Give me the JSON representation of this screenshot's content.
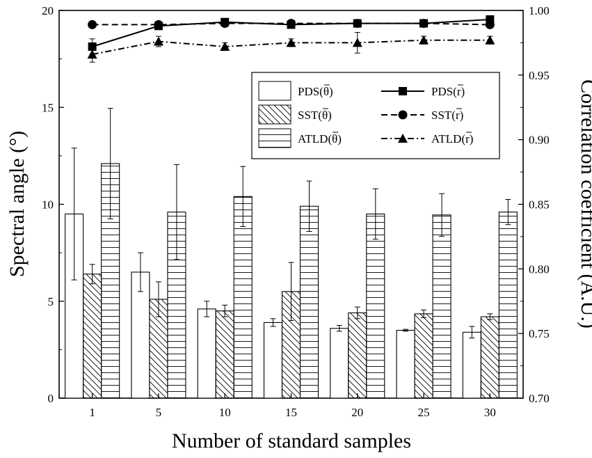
{
  "chart_data": {
    "type": "bar",
    "categories": [
      "1",
      "5",
      "10",
      "15",
      "20",
      "25",
      "30"
    ],
    "xlabel": "Number of standard samples",
    "ylabel": "Spectral angle (°)",
    "y2label": "Correlation coefficient (A.U.)",
    "ylim": [
      0,
      20
    ],
    "y2lim": [
      0.7,
      1.0
    ],
    "yticks": [
      "0",
      "5",
      "10",
      "15",
      "20"
    ],
    "y2ticks": [
      "0.70",
      "0.75",
      "0.80",
      "0.85",
      "0.90",
      "0.95",
      "1.00"
    ],
    "bar_series": [
      {
        "name": "PDS (θ̄)",
        "legend_label": "PDS(θ)",
        "pattern": "none",
        "values": [
          9.5,
          6.5,
          4.6,
          3.9,
          3.6,
          3.5,
          3.4
        ],
        "errors": [
          3.4,
          1.0,
          0.4,
          0.2,
          0.15,
          0.05,
          0.3
        ]
      },
      {
        "name": "SST (θ̄)",
        "legend_label": "SST(θ)",
        "pattern": "diagonal",
        "values": [
          6.4,
          5.1,
          4.5,
          5.5,
          4.4,
          4.35,
          4.2
        ],
        "errors": [
          0.5,
          0.9,
          0.3,
          1.5,
          0.3,
          0.2,
          0.15
        ]
      },
      {
        "name": "ATLD (θ̄)",
        "legend_label": "ATLD(θ)",
        "pattern": "horizontal",
        "values": [
          12.1,
          9.6,
          10.4,
          9.9,
          9.5,
          9.45,
          9.6
        ],
        "errors": [
          2.85,
          2.45,
          1.55,
          1.3,
          1.3,
          1.1,
          0.65
        ]
      }
    ],
    "line_series": [
      {
        "name": "PDS (r̄)",
        "legend_label": "PDS(r)",
        "marker": "square",
        "dash": "solid",
        "values": [
          0.972,
          0.988,
          0.991,
          0.989,
          0.99,
          0.99,
          0.993
        ],
        "errors": [
          0.006,
          0.002,
          0.001,
          0.001,
          0.001,
          0.001,
          0.001
        ]
      },
      {
        "name": "SST (r̄)",
        "legend_label": "SST(r)",
        "marker": "circle",
        "dash": "dash",
        "values": [
          0.989,
          0.989,
          0.99,
          0.99,
          0.99,
          0.99,
          0.989
        ],
        "errors": [
          0.002,
          0.001,
          0.001,
          0.001,
          0.001,
          0.001,
          0.001
        ]
      },
      {
        "name": "ATLD (r̄)",
        "legend_label": "ATLD(r)",
        "marker": "triangle",
        "dash": "dashdot",
        "values": [
          0.966,
          0.976,
          0.972,
          0.975,
          0.975,
          0.977,
          0.977
        ],
        "errors": [
          0.006,
          0.004,
          0.003,
          0.003,
          0.008,
          0.003,
          0.003
        ]
      }
    ],
    "legend_position": "top-right",
    "grid": false
  }
}
